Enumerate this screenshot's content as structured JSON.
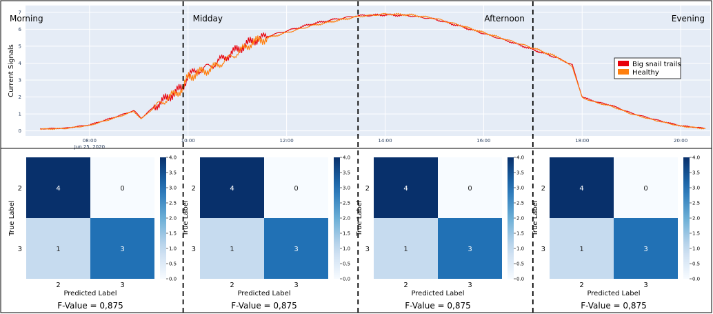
{
  "chart_data": [
    {
      "type": "line",
      "ylabel": "Current Signals",
      "xlabel": "",
      "ylim": [
        -0.3,
        7.4
      ],
      "yticks": [
        0,
        1,
        2,
        3,
        4,
        5,
        6,
        7
      ],
      "xlim_hours": [
        6.7,
        20.6
      ],
      "xticks": [
        {
          "hour": 8,
          "label": "08:00",
          "sublabel": "Jun 25, 2020"
        },
        {
          "hour": 10,
          "label": "10:00",
          "sublabel": ""
        },
        {
          "hour": 12,
          "label": "12:00",
          "sublabel": ""
        },
        {
          "hour": 14,
          "label": "14:00",
          "sublabel": ""
        },
        {
          "hour": 16,
          "label": "16:00",
          "sublabel": ""
        },
        {
          "hour": 18,
          "label": "18:00",
          "sublabel": ""
        },
        {
          "hour": 20,
          "label": "20:00",
          "sublabel": ""
        }
      ],
      "grid": true,
      "legend_position": "right",
      "period_boundaries_hours": [
        9.9,
        13.45,
        17.0
      ],
      "periods": [
        {
          "label": "Morning",
          "align": "left"
        },
        {
          "label": "Midday",
          "align": "left"
        },
        {
          "label": "Afternoon",
          "align": "right"
        },
        {
          "label": "Evening",
          "align": "right"
        }
      ],
      "series": [
        {
          "name": "Big snail trails",
          "color": "#e8000b",
          "points": [
            [
              7.0,
              0.12
            ],
            [
              7.5,
              0.16
            ],
            [
              8.0,
              0.35
            ],
            [
              8.5,
              0.8
            ],
            [
              8.9,
              1.2
            ],
            [
              9.05,
              0.75
            ],
            [
              9.3,
              1.4
            ],
            [
              9.6,
              2.0
            ],
            [
              9.9,
              2.6
            ],
            [
              10.0,
              3.3
            ],
            [
              10.5,
              3.9
            ],
            [
              11.0,
              4.8
            ],
            [
              11.3,
              5.3
            ],
            [
              11.5,
              5.5
            ],
            [
              12.0,
              5.9
            ],
            [
              12.5,
              6.3
            ],
            [
              13.0,
              6.6
            ],
            [
              13.45,
              6.8
            ],
            [
              14.0,
              6.85
            ],
            [
              14.5,
              6.8
            ],
            [
              15.0,
              6.6
            ],
            [
              15.5,
              6.2
            ],
            [
              16.0,
              5.75
            ],
            [
              16.5,
              5.3
            ],
            [
              17.0,
              4.8
            ],
            [
              17.5,
              4.3
            ],
            [
              17.8,
              3.9
            ],
            [
              18.0,
              2.0
            ],
            [
              18.3,
              1.7
            ],
            [
              18.6,
              1.5
            ],
            [
              19.0,
              1.05
            ],
            [
              19.5,
              0.65
            ],
            [
              20.0,
              0.3
            ],
            [
              20.5,
              0.15
            ]
          ]
        },
        {
          "name": "Healthy",
          "color": "#ff7f0e",
          "points": [
            [
              7.0,
              0.1
            ],
            [
              7.5,
              0.14
            ],
            [
              8.0,
              0.32
            ],
            [
              8.5,
              0.75
            ],
            [
              8.9,
              1.15
            ],
            [
              9.05,
              0.7
            ],
            [
              9.3,
              1.35
            ],
            [
              9.6,
              1.95
            ],
            [
              9.9,
              2.5
            ],
            [
              10.0,
              3.2
            ],
            [
              10.5,
              3.7
            ],
            [
              11.0,
              4.6
            ],
            [
              11.3,
              5.2
            ],
            [
              11.5,
              5.4
            ],
            [
              12.0,
              5.8
            ],
            [
              12.5,
              6.2
            ],
            [
              13.0,
              6.5
            ],
            [
              13.45,
              6.75
            ],
            [
              14.0,
              6.9
            ],
            [
              14.5,
              6.85
            ],
            [
              15.0,
              6.65
            ],
            [
              15.5,
              6.25
            ],
            [
              16.0,
              5.8
            ],
            [
              16.5,
              5.35
            ],
            [
              17.0,
              4.9
            ],
            [
              17.5,
              4.35
            ],
            [
              17.8,
              3.8
            ],
            [
              18.0,
              1.95
            ],
            [
              18.3,
              1.65
            ],
            [
              18.6,
              1.45
            ],
            [
              19.0,
              1.0
            ],
            [
              19.5,
              0.6
            ],
            [
              20.0,
              0.28
            ],
            [
              20.5,
              0.13
            ]
          ]
        }
      ]
    },
    {
      "type": "heatmap",
      "row_labels": [
        "2",
        "3"
      ],
      "col_labels": [
        "2",
        "3"
      ],
      "values": [
        [
          4,
          0
        ],
        [
          1,
          3
        ]
      ],
      "xlabel": "Predicted Label",
      "ylabel": "True Label",
      "colorbar_ticks": [
        "0.0",
        "0.5",
        "1.0",
        "1.5",
        "2.0",
        "2.5",
        "3.0",
        "3.5",
        "4.0"
      ],
      "caption": "F-Value = 0,875"
    },
    {
      "type": "heatmap",
      "row_labels": [
        "2",
        "3"
      ],
      "col_labels": [
        "2",
        "3"
      ],
      "values": [
        [
          4,
          0
        ],
        [
          1,
          3
        ]
      ],
      "xlabel": "Predicted Label",
      "ylabel": "True Label",
      "colorbar_ticks": [
        "0.0",
        "0.5",
        "1.0",
        "1.5",
        "2.0",
        "2.5",
        "3.0",
        "3.5",
        "4.0"
      ],
      "caption": "F-Value = 0,875"
    },
    {
      "type": "heatmap",
      "row_labels": [
        "2",
        "3"
      ],
      "col_labels": [
        "2",
        "3"
      ],
      "values": [
        [
          4,
          0
        ],
        [
          1,
          3
        ]
      ],
      "xlabel": "Predicted Label",
      "ylabel": "True Label",
      "colorbar_ticks": [
        "0.0",
        "0.5",
        "1.0",
        "1.5",
        "2.0",
        "2.5",
        "3.0",
        "3.5",
        "4.0"
      ],
      "caption": "F-Value = 0,875"
    },
    {
      "type": "heatmap",
      "row_labels": [
        "2",
        "3"
      ],
      "col_labels": [
        "2",
        "3"
      ],
      "values": [
        [
          4,
          0
        ],
        [
          1,
          3
        ]
      ],
      "xlabel": "Predicted Label",
      "ylabel": "True Label",
      "colorbar_ticks": [
        "0.0",
        "0.5",
        "1.0",
        "1.5",
        "2.0",
        "2.5",
        "3.0",
        "3.5",
        "4.0"
      ],
      "caption": "F-Value = 0,875"
    }
  ]
}
